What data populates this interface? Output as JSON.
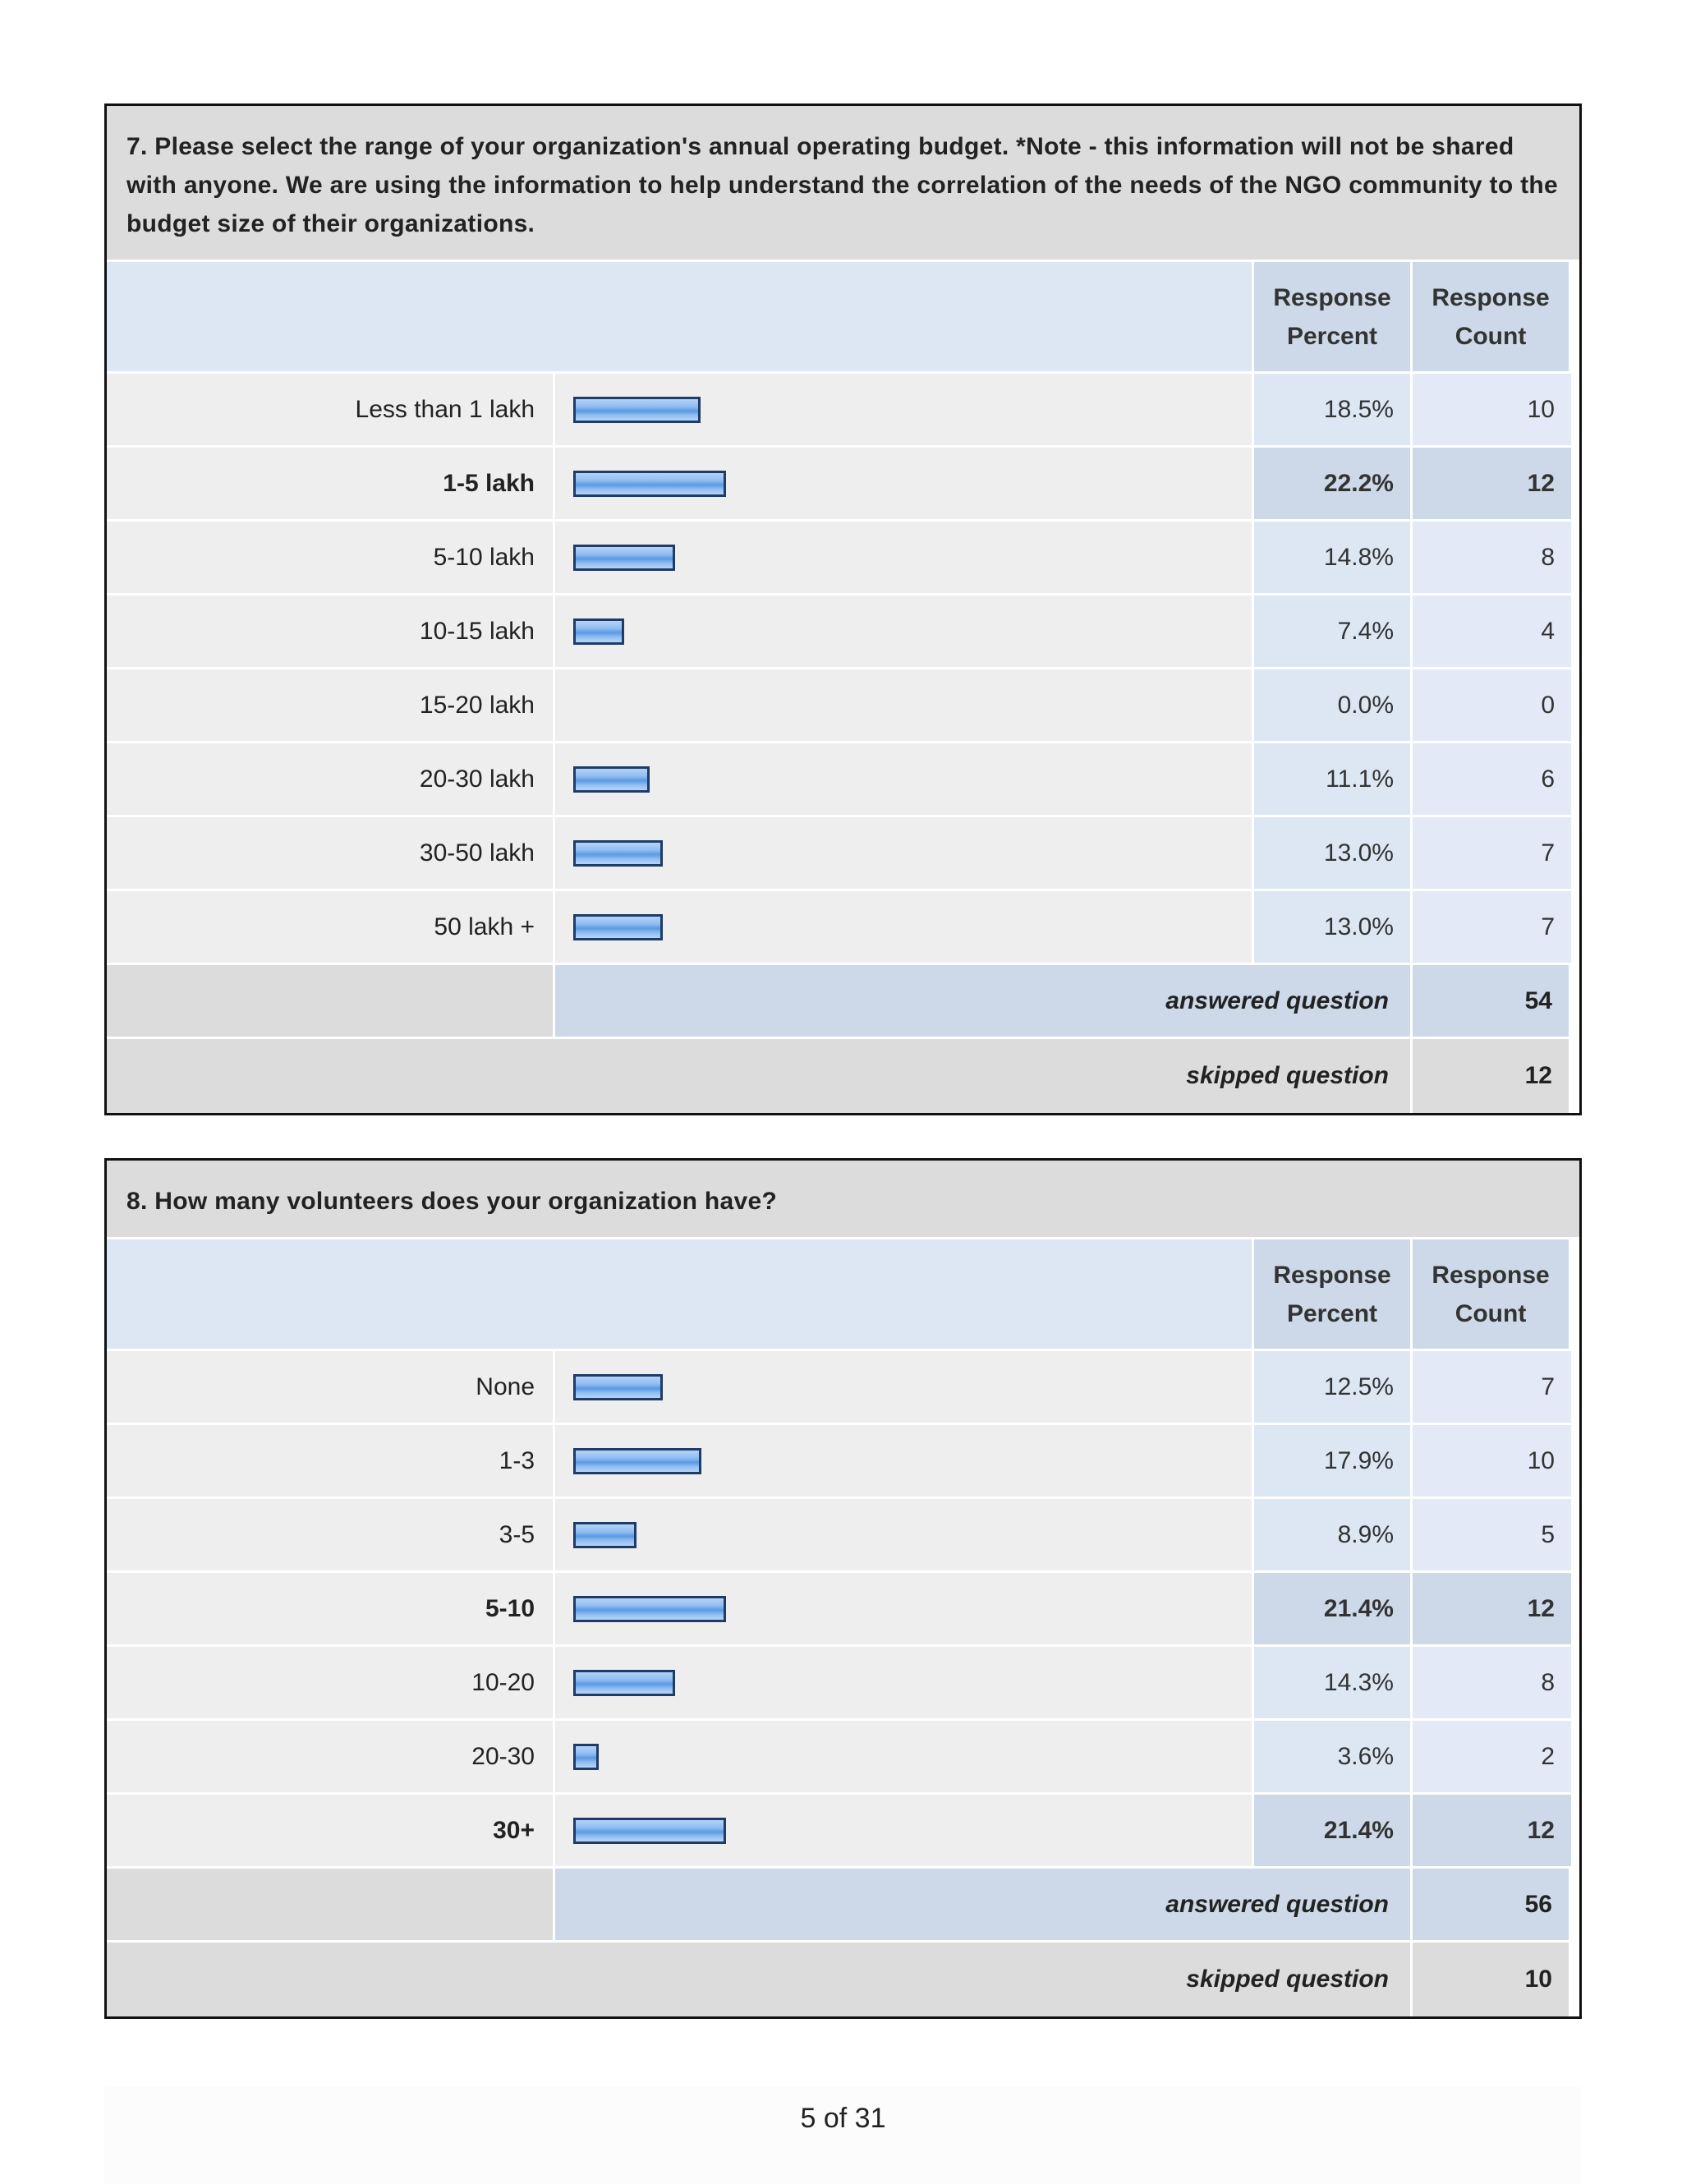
{
  "questions": [
    {
      "title": "7. Please select the range of your organization's annual operating budget. *Note - this information will not be shared with anyone. We are using the information to help understand the correlation of the needs of the NGO community to the budget size of their organizations.",
      "col_percent": "Response Percent",
      "col_count": "Response Count",
      "max_percent": 22.2,
      "rows": [
        {
          "label": "Less than 1 lakh",
          "percent": "18.5%",
          "percent_value": 18.5,
          "count": "10",
          "highlight": false
        },
        {
          "label": "1-5 lakh",
          "percent": "22.2%",
          "percent_value": 22.2,
          "count": "12",
          "highlight": true
        },
        {
          "label": "5-10 lakh",
          "percent": "14.8%",
          "percent_value": 14.8,
          "count": "8",
          "highlight": false
        },
        {
          "label": "10-15 lakh",
          "percent": "7.4%",
          "percent_value": 7.4,
          "count": "4",
          "highlight": false
        },
        {
          "label": "15-20 lakh",
          "percent": "0.0%",
          "percent_value": 0.0,
          "count": "0",
          "highlight": false
        },
        {
          "label": "20-30 lakh",
          "percent": "11.1%",
          "percent_value": 11.1,
          "count": "6",
          "highlight": false
        },
        {
          "label": "30-50 lakh",
          "percent": "13.0%",
          "percent_value": 13.0,
          "count": "7",
          "highlight": false
        },
        {
          "label": "50 lakh +",
          "percent": "13.0%",
          "percent_value": 13.0,
          "count": "7",
          "highlight": false
        }
      ],
      "answered_label": "answered question",
      "answered_count": "54",
      "skipped_label": "skipped question",
      "skipped_count": "12"
    },
    {
      "title": "8. How many volunteers does your organization have?",
      "col_percent": "Response Percent",
      "col_count": "Response Count",
      "max_percent": 21.4,
      "rows": [
        {
          "label": "None",
          "percent": "12.5%",
          "percent_value": 12.5,
          "count": "7",
          "highlight": false
        },
        {
          "label": "1-3",
          "percent": "17.9%",
          "percent_value": 17.9,
          "count": "10",
          "highlight": false
        },
        {
          "label": "3-5",
          "percent": "8.9%",
          "percent_value": 8.9,
          "count": "5",
          "highlight": false
        },
        {
          "label": "5-10",
          "percent": "21.4%",
          "percent_value": 21.4,
          "count": "12",
          "highlight": true
        },
        {
          "label": "10-20",
          "percent": "14.3%",
          "percent_value": 14.3,
          "count": "8",
          "highlight": false
        },
        {
          "label": "20-30",
          "percent": "3.6%",
          "percent_value": 3.6,
          "count": "2",
          "highlight": false
        },
        {
          "label": "30+",
          "percent": "21.4%",
          "percent_value": 21.4,
          "count": "12",
          "highlight": true
        }
      ],
      "answered_label": "answered question",
      "answered_count": "56",
      "skipped_label": "skipped question",
      "skipped_count": "10"
    }
  ],
  "page_footer": "5 of 31"
}
